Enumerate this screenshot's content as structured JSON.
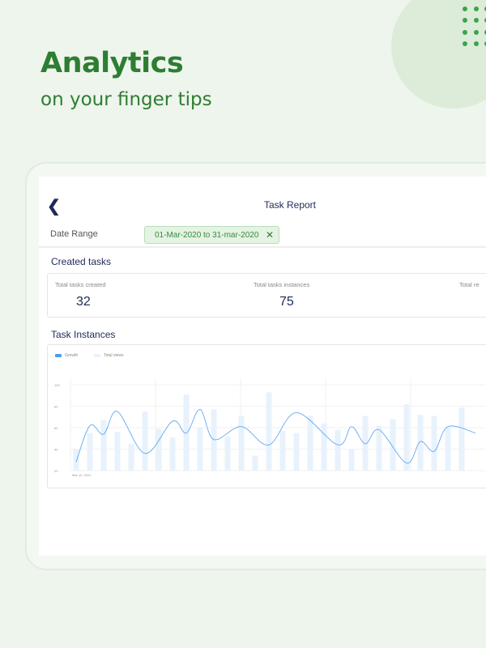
{
  "hero": {
    "title": "Analytics",
    "subtitle": "on your finger tips"
  },
  "header": {
    "title": "Task Report"
  },
  "filter": {
    "label": "Date Range",
    "value": "01-Mar-2020 to 31-mar-2020"
  },
  "created": {
    "heading": "Created tasks",
    "stats": [
      {
        "label": "Total tasks created",
        "value": "32"
      },
      {
        "label": "Total tasks instances",
        "value": "75"
      },
      {
        "label": "Total re",
        "value": ""
      }
    ]
  },
  "instances": {
    "heading": "Task Instances"
  },
  "colors": {
    "brand": "#2e7d32",
    "growth": "#64a8f0",
    "views": "#e8f2fd"
  },
  "chart_data": {
    "type": "bar+line",
    "legend": [
      "Growth",
      "Total views"
    ],
    "x_first_label": "Mar 10, 2021",
    "yticks": [
      20,
      40,
      60,
      80,
      100
    ],
    "ylim": [
      20,
      100
    ],
    "grid": true,
    "series": [
      {
        "name": "Total views",
        "type": "bar",
        "values": [
          40,
          55,
          67,
          56,
          45,
          75,
          59,
          51,
          91,
          60,
          77,
          52,
          71,
          34,
          93,
          57,
          55,
          71,
          64,
          58,
          40,
          71,
          62,
          68,
          82,
          72,
          71,
          60,
          79
        ]
      },
      {
        "name": "Growth",
        "type": "line",
        "points": [
          [
            0,
            28
          ],
          [
            1,
            62
          ],
          [
            2,
            54
          ],
          [
            3,
            75
          ],
          [
            5,
            36
          ],
          [
            7,
            66
          ],
          [
            8,
            55
          ],
          [
            9,
            77
          ],
          [
            10,
            49
          ],
          [
            12,
            61
          ],
          [
            14,
            44
          ],
          [
            16,
            74
          ],
          [
            19,
            44
          ],
          [
            20,
            61
          ],
          [
            21,
            45
          ],
          [
            22,
            58
          ],
          [
            24,
            27
          ],
          [
            25,
            47
          ],
          [
            26,
            38
          ],
          [
            27,
            61
          ],
          [
            29,
            55
          ]
        ]
      }
    ]
  }
}
